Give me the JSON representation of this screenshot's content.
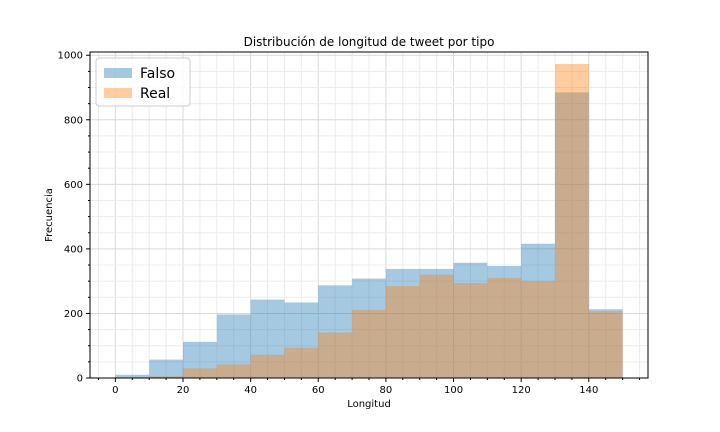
{
  "chart_data": {
    "type": "bar",
    "title": "Distribución de longitud de tweet por tipo",
    "xlabel": "Longitud",
    "ylabel": "Frecuencia",
    "xlim": [
      -7.5,
      157.5
    ],
    "ylim": [
      0,
      1010
    ],
    "x_ticks": [
      0,
      20,
      40,
      60,
      80,
      100,
      120,
      140
    ],
    "y_ticks": [
      0,
      200,
      400,
      600,
      800,
      1000
    ],
    "grid": true,
    "legend_position": "top-left",
    "bin_edges": [
      0,
      10,
      20,
      30,
      40,
      50,
      60,
      70,
      80,
      90,
      100,
      110,
      120,
      130,
      140,
      150
    ],
    "series": [
      {
        "name": "Falso",
        "color": "#1f77b4",
        "values": [
          10,
          57,
          112,
          197,
          243,
          234,
          287,
          308,
          338,
          338,
          357,
          347,
          416,
          885,
          213
        ]
      },
      {
        "name": "Real",
        "color": "#ff7f0e",
        "values": [
          2,
          5,
          30,
          42,
          72,
          94,
          141,
          211,
          285,
          320,
          294,
          310,
          301,
          973,
          207
        ]
      }
    ]
  }
}
